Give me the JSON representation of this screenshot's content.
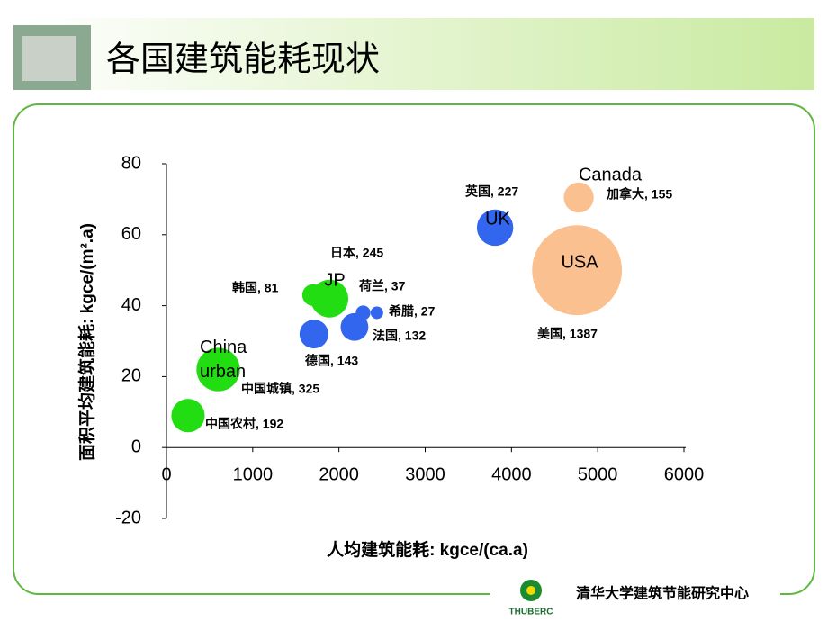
{
  "header": {
    "title": "各国建筑能耗现状"
  },
  "footer": {
    "org": "清华大学建筑节能研究中心",
    "logo": "THUBERC"
  },
  "chart_data": {
    "type": "bubble",
    "xlabel": "人均建筑能耗: kgce/(ca.a)",
    "ylabel": "面积平均建筑能耗: kgce/(m².a)",
    "x": [
      250,
      600,
      1700,
      1890,
      1710,
      2180,
      2280,
      2440,
      3810,
      4780,
      4760
    ],
    "values": [
      9,
      22,
      43,
      42,
      32,
      34,
      38,
      38,
      62,
      70.5,
      50
    ],
    "sizes": [
      192,
      325,
      81,
      245,
      143,
      132,
      37,
      27,
      227,
      155,
      1387
    ],
    "point_labels": [
      "中国农村, 192",
      "中国城镇, 325",
      "韩国, 81",
      "日本, 245",
      "德国, 143",
      "法国, 132",
      "荷兰, 37",
      "希腊, 27",
      "英国, 227",
      "加拿大, 155",
      "美国, 1387"
    ],
    "bubble_texts": [
      null,
      "China urban",
      null,
      "JP",
      null,
      null,
      null,
      null,
      "UK",
      "Canada",
      "USA"
    ],
    "colors": [
      "#22dd11",
      "#22dd11",
      "#22dd11",
      "#22dd11",
      "#3366ee",
      "#3366ee",
      "#3366ee",
      "#3366ee",
      "#3366ee",
      "#fbc08f",
      "#fbc08f"
    ],
    "xlim": [
      0,
      6000
    ],
    "xticks": [
      0,
      1000,
      2000,
      3000,
      4000,
      5000,
      6000
    ],
    "ylim": [
      -20,
      80
    ],
    "yticks": [
      -20,
      0,
      20,
      40,
      60,
      80
    ]
  }
}
